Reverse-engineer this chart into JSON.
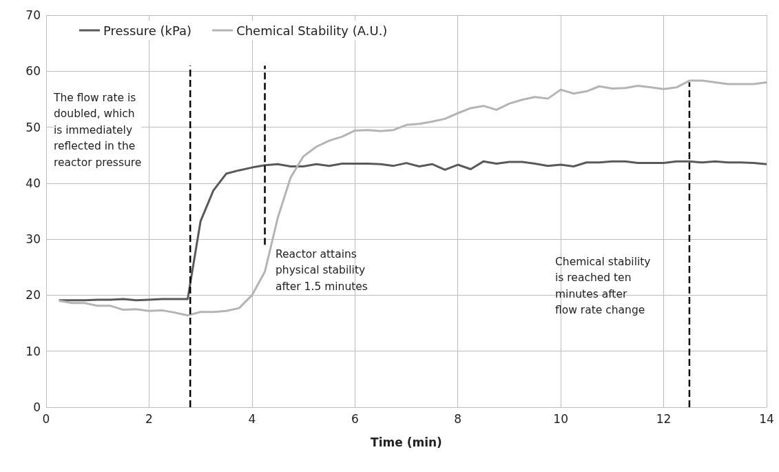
{
  "chart_data": {
    "type": "line",
    "xlabel": "Time (min)",
    "xlim": [
      0,
      14
    ],
    "xticks": [
      0,
      2,
      4,
      6,
      8,
      10,
      12,
      14
    ],
    "ylim": [
      0,
      70
    ],
    "yticks": [
      0,
      10,
      20,
      30,
      40,
      50,
      60,
      70
    ],
    "grid": true,
    "legend": "top left",
    "marker": "none",
    "line_style": "solid",
    "x": [
      0.25,
      0.5,
      0.75,
      1,
      1.25,
      1.5,
      1.75,
      2,
      2.25,
      2.5,
      2.75,
      3,
      3.25,
      3.5,
      3.75,
      4,
      4.25,
      4.5,
      4.75,
      5,
      5.25,
      5.5,
      5.75,
      6,
      6.25,
      6.5,
      6.75,
      7,
      7.25,
      7.5,
      7.75,
      8,
      8.25,
      8.5,
      8.75,
      9,
      9.25,
      9.5,
      9.75,
      10,
      10.25,
      10.5,
      10.75,
      11,
      11.25,
      11.5,
      11.75,
      12,
      12.25,
      12.5,
      12.75,
      13,
      13.25,
      13.5,
      13.75,
      14
    ],
    "series": [
      {
        "name": "Pressure (kPa)",
        "color": "#595959",
        "values": [
          19.1,
          19.1,
          19.1,
          19.2,
          19.2,
          19.3,
          19.1,
          19.2,
          19.3,
          19.3,
          19.3,
          33.2,
          38.7,
          41.7,
          42.3,
          42.8,
          43.2,
          43.4,
          43.0,
          43.0,
          43.4,
          43.1,
          43.5,
          43.5,
          43.5,
          43.4,
          43.1,
          43.6,
          43.0,
          43.4,
          42.4,
          43.3,
          42.5,
          43.9,
          43.5,
          43.8,
          43.8,
          43.5,
          43.1,
          43.3,
          43.0,
          43.7,
          43.7,
          43.9,
          43.9,
          43.6,
          43.6,
          43.6,
          43.9,
          43.9,
          43.7,
          43.9,
          43.7,
          43.7,
          43.6,
          43.4
        ]
      },
      {
        "name": "Chemical Stability (A.U.)",
        "color": "#b4b4b4",
        "values": [
          19.0,
          18.6,
          18.6,
          18.1,
          18.1,
          17.4,
          17.5,
          17.2,
          17.3,
          16.9,
          16.4,
          17.0,
          17.0,
          17.2,
          17.7,
          20.0,
          24.2,
          33.8,
          41.0,
          44.8,
          46.5,
          47.6,
          48.3,
          49.4,
          49.5,
          49.3,
          49.5,
          50.4,
          50.6,
          51.0,
          51.5,
          52.5,
          53.4,
          53.8,
          53.1,
          54.2,
          54.9,
          55.4,
          55.1,
          56.7,
          56.0,
          56.4,
          57.3,
          56.9,
          57.0,
          57.4,
          57.1,
          56.8,
          57.1,
          58.3,
          58.3,
          58.0,
          57.7,
          57.7,
          57.7,
          58.0
        ]
      },
      {
        "type": "line",
        "color": "#000000",
        "line_style": "dashed",
        "x": [
          2.8,
          2.8
        ],
        "values": [
          0,
          61
        ]
      },
      {
        "type": "line",
        "color": "#000000",
        "line_style": "dashed",
        "x": [
          4.25,
          4.25
        ],
        "values": [
          29,
          61
        ]
      },
      {
        "type": "line",
        "color": "#000000",
        "line_style": "dashed",
        "x": [
          12.5,
          12.5
        ],
        "values": [
          0,
          58
        ]
      }
    ],
    "annotations": [
      "The flow rate is\ndoubled, which\nis immediately\nreflected in the\nreactor pressure",
      "Reactor attains\nphysical stability\nafter 1.5 minutes",
      "Chemical stability\nis reached ten\nminutes after\nflow rate change"
    ]
  }
}
